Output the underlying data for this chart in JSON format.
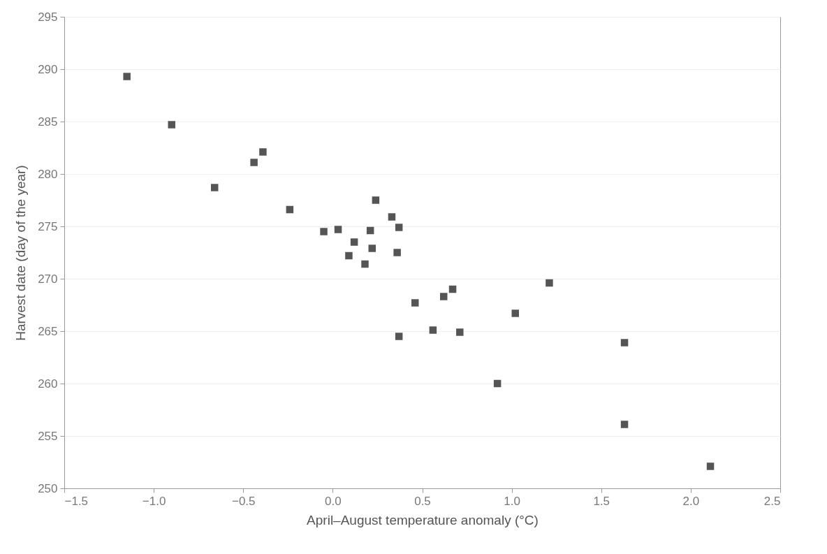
{
  "chart_data": {
    "type": "scatter",
    "xlabel": "April–August temperature anomaly (°C)",
    "ylabel": "Harvest date (day of the year)",
    "x": [
      -1.15,
      -0.9,
      -0.66,
      -0.44,
      -0.39,
      -0.24,
      -0.05,
      0.03,
      0.12,
      0.09,
      0.18,
      0.21,
      0.22,
      0.24,
      0.33,
      0.37,
      0.36,
      0.37,
      0.46,
      0.56,
      0.62,
      0.67,
      0.71,
      0.92,
      1.02,
      1.21,
      1.63,
      1.63,
      2.11
    ],
    "values": [
      289.3,
      284.7,
      278.7,
      281.1,
      282.1,
      276.6,
      274.5,
      274.7,
      273.5,
      272.2,
      271.4,
      274.6,
      272.9,
      277.5,
      275.9,
      274.9,
      272.5,
      264.5,
      267.7,
      265.1,
      268.3,
      269.0,
      264.9,
      260.0,
      266.7,
      269.6,
      263.9,
      256.1,
      252.1
    ],
    "color": "#555555",
    "marker": "square",
    "xlim": [
      -1.5,
      2.5
    ],
    "xticks": [
      {
        "value": -1.5,
        "label": "−1.5"
      },
      {
        "value": -1,
        "label": "−1.0"
      },
      {
        "value": -0.5,
        "label": "−0.5"
      },
      {
        "value": 0,
        "label": "0.0"
      },
      0.5,
      {
        "value": 1,
        "label": "1.0"
      },
      1.5,
      {
        "value": 2,
        "label": "2.0"
      },
      2.5
    ],
    "ylim": [
      250,
      295
    ],
    "yticks": [
      250,
      255,
      260,
      265,
      270,
      275,
      280,
      285,
      290,
      295
    ],
    "grid": "y"
  }
}
